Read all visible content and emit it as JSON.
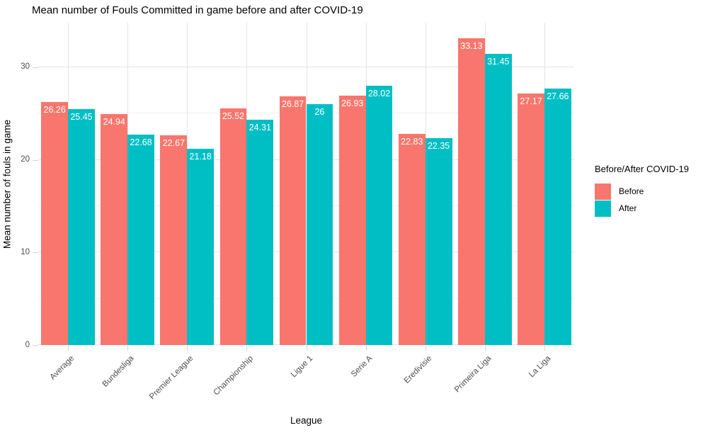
{
  "title": "Mean number of Fouls Committed in game before and after COVID-19",
  "axes": {
    "x_label": "League",
    "y_label": "Mean number of fouls in game",
    "y_ticks": [
      0,
      10,
      20,
      30
    ],
    "y_minor_ticks": [
      5,
      15,
      25
    ]
  },
  "legend": {
    "title": "Before/After COVID-19",
    "items": [
      {
        "label": "Before",
        "color": "#F8766D"
      },
      {
        "label": "After",
        "color": "#00BFC4"
      }
    ]
  },
  "colors": {
    "before": "#F8766D",
    "after": "#00BFC4",
    "grid_major": "#e3e3e3",
    "grid_minor": "#efefef",
    "axis_text": "#4d4d4d",
    "bar_label_text": "#ffffff",
    "background": "#ffffff"
  },
  "chart_data": {
    "type": "bar",
    "title": "Mean number of Fouls Committed in game before and after COVID-19",
    "xlabel": "League",
    "ylabel": "Mean number of fouls in game",
    "categories": [
      "Average",
      "Bundesliga",
      "Premier League",
      "Championship",
      "Ligue 1",
      "Serie A",
      "Eredivisie",
      "Primeira Liga",
      "La Liga"
    ],
    "series": [
      {
        "name": "Before",
        "color": "#F8766D",
        "values": [
          26.26,
          24.94,
          22.67,
          25.52,
          26.87,
          26.93,
          22.83,
          33.13,
          27.17
        ]
      },
      {
        "name": "After",
        "color": "#00BFC4",
        "values": [
          25.45,
          22.68,
          21.18,
          24.31,
          26,
          28.02,
          22.35,
          31.45,
          27.66
        ]
      }
    ],
    "bar_value_labels": true,
    "ylim": [
      0,
      34.8
    ],
    "y_ticks": [
      0,
      10,
      20,
      30
    ],
    "y_minor_ticks": [
      5,
      15,
      25
    ],
    "grid": true,
    "legend_position": "right",
    "legend_title": "Before/After COVID-19"
  }
}
